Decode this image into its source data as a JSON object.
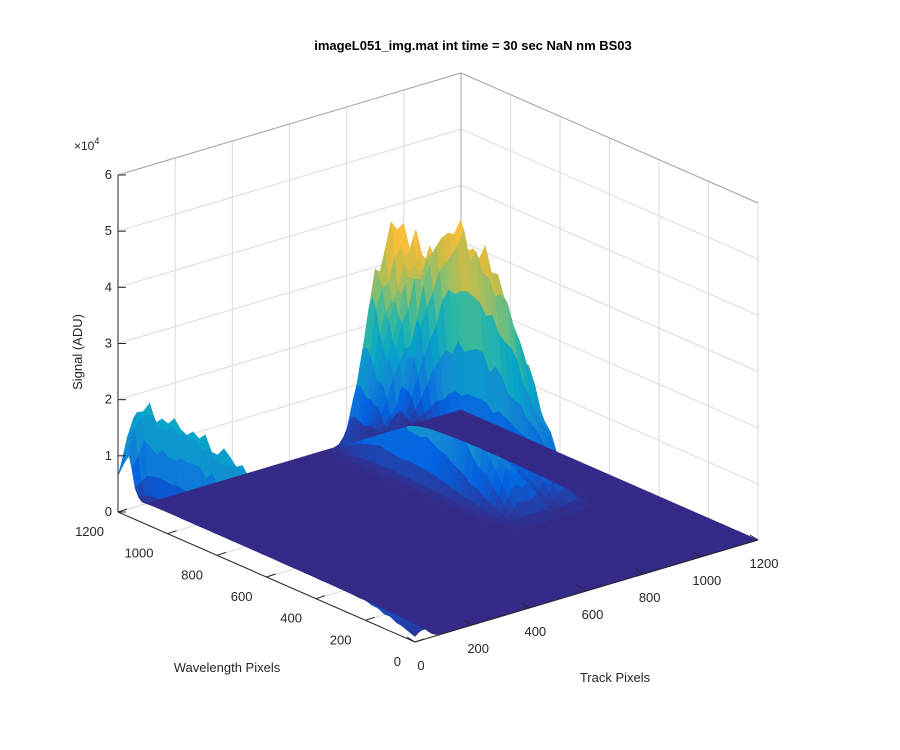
{
  "chart_data": {
    "type": "surface",
    "title": "imageL051_img.mat int time = 30 sec  NaN nm BS03",
    "xlabel": "Track Pixels",
    "ylabel": "Wavelength Pixels",
    "zlabel": "Signal (ADU)",
    "z_multiplier": "×10",
    "z_multiplier_exp": "4",
    "xlim": [
      0,
      1200
    ],
    "ylim": [
      0,
      1200
    ],
    "zlim": [
      0,
      60000
    ],
    "x_ticks": [
      0,
      200,
      400,
      600,
      800,
      1000,
      1200
    ],
    "y_ticks": [
      0,
      200,
      400,
      600,
      800,
      1000,
      1200
    ],
    "z_ticks": [
      0,
      1,
      2,
      3,
      4,
      5,
      6
    ],
    "grid": true,
    "colormap": "parula",
    "series": [
      {
        "x_center": 25,
        "x_width": 50,
        "y_range": [
          0,
          1200
        ],
        "peak_signal": 21000,
        "peak_wavelength_pixel": 1150,
        "signal_at_0": 2000
      },
      {
        "x_center": 800,
        "x_width": 55,
        "y_range": [
          450,
          1200
        ],
        "peak_signal": 45000,
        "peak_wavelength_pixel": 1000
      },
      {
        "x_center": 860,
        "x_width": 45,
        "y_range": [
          450,
          1200
        ],
        "peak_signal": 38000,
        "peak_wavelength_pixel": 900
      },
      {
        "x_center": 960,
        "x_width": 60,
        "y_range": [
          450,
          1200
        ],
        "peak_signal": 45000,
        "peak_wavelength_pixel": 950
      }
    ],
    "background_signal": 0
  }
}
